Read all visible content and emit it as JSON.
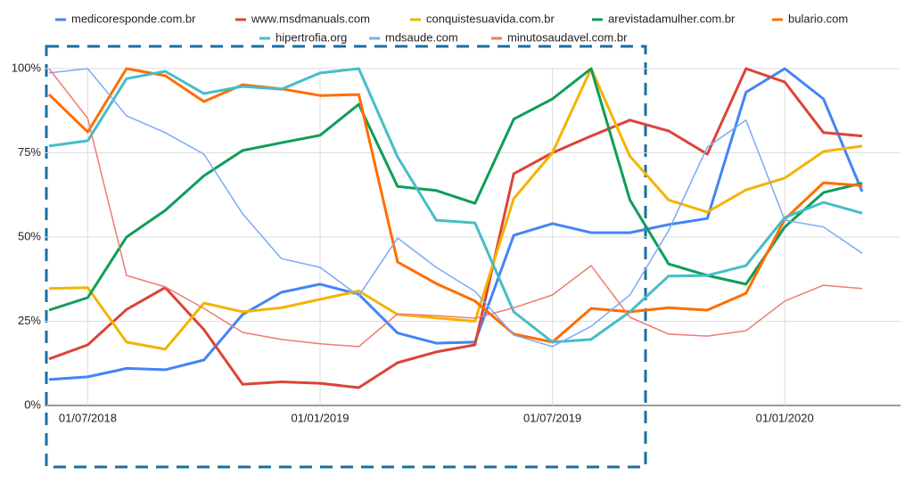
{
  "chart_data": {
    "type": "line",
    "categories": [
      null,
      "01/07/2018",
      null,
      null,
      null,
      null,
      null,
      "01/01/2019",
      null,
      null,
      null,
      null,
      null,
      "01/07/2019",
      null,
      null,
      null,
      null,
      null,
      "01/01/2020",
      null,
      null
    ],
    "ylim": [
      0,
      100
    ],
    "yticks": [
      {
        "value": 0,
        "label": "0%"
      },
      {
        "value": 25,
        "label": "25%"
      },
      {
        "value": 50,
        "label": "50%"
      },
      {
        "value": 75,
        "label": "75%"
      },
      {
        "value": 100,
        "label": "100%"
      }
    ],
    "grid": true,
    "legend": "top",
    "series": [
      {
        "name": "medicoresponde.com.br",
        "color": "#4285f4",
        "linewidth": 3,
        "values": [
          7.7,
          8.5,
          11,
          10.6,
          13.5,
          27,
          33.6,
          36,
          33,
          21.5,
          18.5,
          18.8,
          50.5,
          54,
          51.3,
          51.3,
          53.7,
          55.5,
          93,
          100,
          91,
          63.5
        ]
      },
      {
        "name": "www.msdmanuals.com",
        "color": "#db4437",
        "linewidth": 3,
        "values": [
          13.8,
          18,
          28.5,
          35,
          22.5,
          6.3,
          7,
          6.6,
          5.3,
          12.7,
          15.9,
          18,
          68.8,
          75,
          80,
          84.7,
          81.5,
          74.6,
          100,
          96,
          81,
          80
        ]
      },
      {
        "name": "conquistesuavida.com.br",
        "color": "#f4b400",
        "linewidth": 3,
        "values": [
          34.7,
          35,
          18.8,
          16.7,
          30.4,
          27.8,
          29,
          31.5,
          34,
          27,
          26,
          25,
          61.4,
          75,
          100,
          74,
          61,
          57.4,
          64,
          67.5,
          75.4,
          77
        ]
      },
      {
        "name": "arevistadamulher.com.br",
        "color": "#0f9d58",
        "linewidth": 3,
        "values": [
          28.3,
          32,
          50,
          57.9,
          68.2,
          75.7,
          78,
          80.2,
          89.4,
          65,
          63.8,
          60,
          85,
          91,
          100,
          61,
          42,
          38.6,
          36,
          53,
          63.2,
          66
        ]
      },
      {
        "name": "bulario.com",
        "color": "#ff6d00",
        "linewidth": 3,
        "values": [
          92.3,
          81.2,
          100,
          97.9,
          90.2,
          95.2,
          94,
          92,
          92.3,
          42.6,
          36.2,
          31,
          21.2,
          18.8,
          28.8,
          27.8,
          29,
          28.3,
          33.3,
          55.3,
          66.1,
          65.3
        ]
      },
      {
        "name": "hipertrofia.org",
        "color": "#46bdc6",
        "linewidth": 3,
        "values": [
          77,
          78.6,
          97,
          99.2,
          92.6,
          94.7,
          93.9,
          98.7,
          100,
          73.8,
          55,
          54.2,
          27.8,
          18.8,
          19.6,
          27.8,
          38.4,
          38.6,
          41.5,
          55.8,
          60.3,
          57.1
        ]
      },
      {
        "name": "mdsaude.com",
        "color": "#7baaf7",
        "linewidth": 1.5,
        "values": [
          98.7,
          100,
          86,
          81,
          74.6,
          56.9,
          43.6,
          41,
          32.5,
          49.7,
          41,
          33.9,
          20.9,
          17.5,
          23.5,
          32.8,
          51.9,
          76.7,
          84.7,
          55,
          53,
          45.2
        ]
      },
      {
        "name": "minutosaudavel.com.br",
        "color": "#f07b72",
        "linewidth": 1.5,
        "values": [
          100,
          85.2,
          38.6,
          35.2,
          28.8,
          21.7,
          19.6,
          18.3,
          17.5,
          27.2,
          26.7,
          25.9,
          29,
          32.8,
          41.5,
          26.2,
          21.2,
          20.6,
          22.2,
          31,
          35.7,
          34.7
        ]
      }
    ]
  }
}
